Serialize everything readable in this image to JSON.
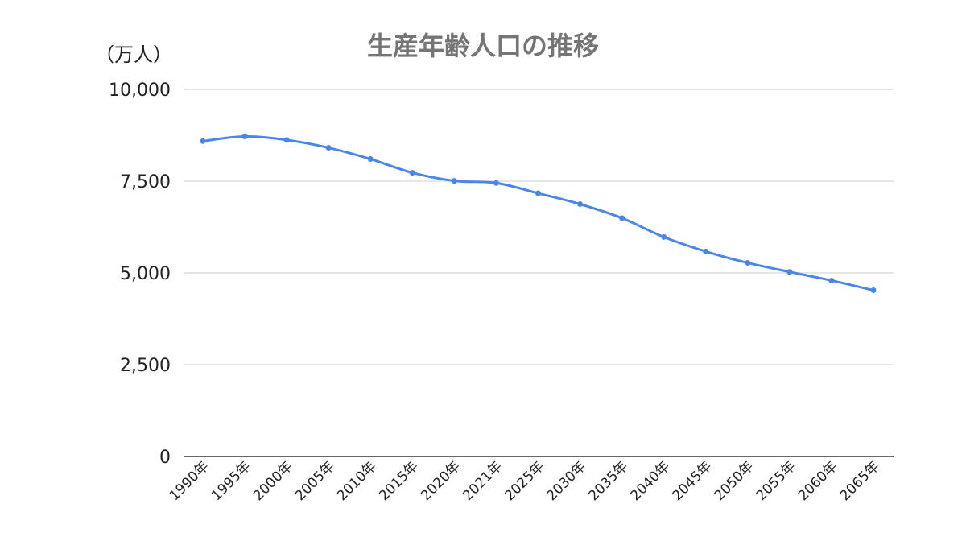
{
  "chart_data": {
    "type": "line",
    "title": "生産年齢人口の推移",
    "unit_label": "（万人）",
    "categories": [
      "1990年",
      "1995年",
      "2000年",
      "2005年",
      "2010年",
      "2015年",
      "2020年",
      "2021年",
      "2025年",
      "2030年",
      "2035年",
      "2040年",
      "2045年",
      "2050年",
      "2055年",
      "2060年",
      "2065年"
    ],
    "series": [
      {
        "values": [
          8590,
          8716,
          8622,
          8409,
          8103,
          7728,
          7509,
          7450,
          7170,
          6875,
          6494,
          5978,
          5584,
          5275,
          5028,
          4793,
          4529
        ],
        "color": "#4a86e8"
      }
    ],
    "yticks": [
      "10,000",
      "7,500",
      "5,000",
      "2,500",
      "0"
    ],
    "ylim": [
      0,
      10000
    ],
    "grid": true,
    "legend": "none"
  }
}
